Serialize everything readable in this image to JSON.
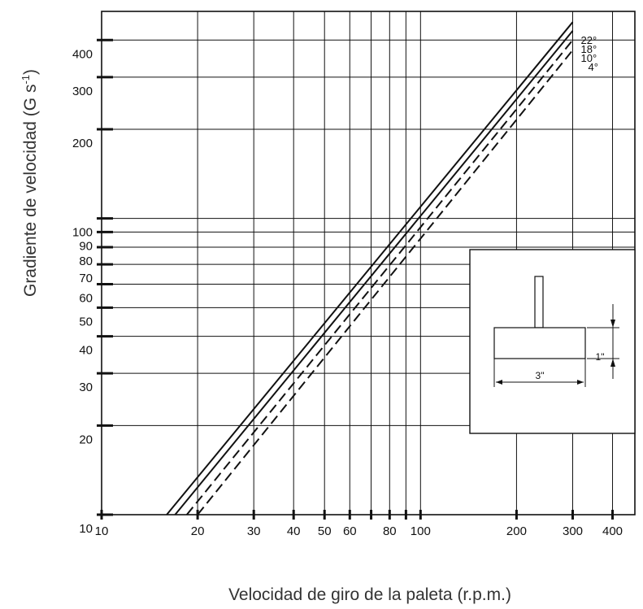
{
  "chart_data": {
    "type": "line",
    "title": "",
    "xlabel": "Velocidad de giro de la paleta  (r.p.m.)",
    "ylabel": "Gradiente de velocidad  (G s",
    "ylabel_superscript": "-1",
    "ylabel_close": ")",
    "xscale": "log",
    "yscale": "log",
    "xlim": [
      10,
      470
    ],
    "ylim": [
      10,
      500
    ],
    "xticks": [
      10,
      20,
      30,
      40,
      50,
      60,
      80,
      100,
      200,
      300,
      400
    ],
    "xtick_labels": [
      "10",
      "20",
      "30",
      "40",
      "50",
      "60",
      "80",
      "100",
      "200",
      "300",
      "400"
    ],
    "yticks": [
      10,
      20,
      30,
      40,
      50,
      60,
      70,
      80,
      90,
      100,
      200,
      300,
      400
    ],
    "ytick_labels": [
      "10",
      "20",
      "30",
      "40",
      "50",
      "60",
      "70",
      "80",
      "90",
      "100",
      "200",
      "300",
      "400"
    ],
    "grid": true,
    "series": [
      {
        "name": "22°",
        "style": "solid",
        "x": [
          16,
          300
        ],
        "y": [
          10,
          460
        ]
      },
      {
        "name": "18°",
        "style": "solid",
        "x": [
          17,
          300
        ],
        "y": [
          10,
          430
        ]
      },
      {
        "name": "10°",
        "style": "dashed",
        "x": [
          18.5,
          300
        ],
        "y": [
          10,
          400
        ]
      },
      {
        "name": "4°",
        "style": "dashed",
        "x": [
          20,
          300
        ],
        "y": [
          10,
          370
        ]
      }
    ],
    "inset": {
      "width_label": "3\"",
      "height_label": "1\""
    }
  },
  "colors": {
    "line": "#111111",
    "background": "#ffffff",
    "label": "#333333"
  }
}
